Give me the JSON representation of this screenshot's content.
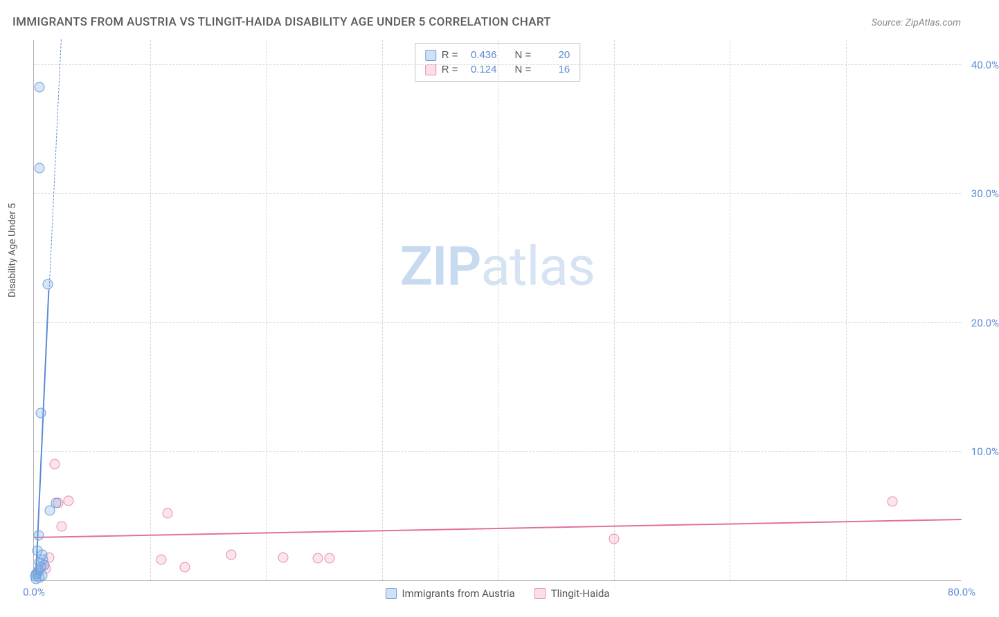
{
  "header": {
    "title": "IMMIGRANTS FROM AUSTRIA VS TLINGIT-HAIDA DISABILITY AGE UNDER 5 CORRELATION CHART",
    "source": "Source: ZipAtlas.com"
  },
  "y_axis_label": "Disability Age Under 5",
  "watermark": {
    "bold": "ZIP",
    "rest": "atlas"
  },
  "chart": {
    "type": "scatter",
    "xlim": [
      0,
      80
    ],
    "ylim": [
      0,
      42
    ],
    "x_ticks": [
      {
        "v": 0,
        "label": "0.0%"
      },
      {
        "v": 10,
        "label": ""
      },
      {
        "v": 20,
        "label": ""
      },
      {
        "v": 30,
        "label": ""
      },
      {
        "v": 40,
        "label": ""
      },
      {
        "v": 50,
        "label": ""
      },
      {
        "v": 60,
        "label": ""
      },
      {
        "v": 70,
        "label": ""
      },
      {
        "v": 80,
        "label": "80.0%"
      }
    ],
    "y_ticks": [
      {
        "v": 10,
        "label": "10.0%"
      },
      {
        "v": 20,
        "label": "20.0%"
      },
      {
        "v": 30,
        "label": "30.0%"
      },
      {
        "v": 40,
        "label": "40.0%"
      }
    ],
    "grid_color": "#d8d8d8",
    "background_color": "#ffffff",
    "axis_color": "#b0b0b0",
    "tick_fontsize": 15,
    "tick_color": "#5b8bd4",
    "marker_size": 15,
    "series": {
      "blue": {
        "label": "Immigrants from Austria",
        "fill": "rgba(120,170,230,0.3)",
        "stroke": "#6a9fd8",
        "stats": {
          "R": "0.436",
          "N": "20"
        },
        "points": [
          {
            "x": 0.5,
            "y": 38.3
          },
          {
            "x": 0.5,
            "y": 32.0
          },
          {
            "x": 1.2,
            "y": 23.0
          },
          {
            "x": 0.6,
            "y": 13.0
          },
          {
            "x": 1.9,
            "y": 6.0
          },
          {
            "x": 1.4,
            "y": 5.4
          },
          {
            "x": 0.4,
            "y": 3.5
          },
          {
            "x": 0.3,
            "y": 2.3
          },
          {
            "x": 0.7,
            "y": 2.0
          },
          {
            "x": 0.8,
            "y": 1.6
          },
          {
            "x": 0.5,
            "y": 1.4
          },
          {
            "x": 0.9,
            "y": 1.2
          },
          {
            "x": 0.6,
            "y": 1.0
          },
          {
            "x": 0.4,
            "y": 0.8
          },
          {
            "x": 0.3,
            "y": 0.6
          },
          {
            "x": 0.2,
            "y": 0.5
          },
          {
            "x": 0.7,
            "y": 0.4
          },
          {
            "x": 0.1,
            "y": 0.3
          },
          {
            "x": 0.5,
            "y": 0.2
          },
          {
            "x": 0.2,
            "y": 0.1
          }
        ],
        "trend": {
          "solid": {
            "x1": 0.2,
            "y1": 0.5,
            "x2": 1.3,
            "y2": 22.5
          },
          "dashed": {
            "x1": 1.3,
            "y1": 22.5,
            "x2": 2.5,
            "y2": 45.0
          },
          "color": "#5b8bd4",
          "width": 2.5,
          "dash_width": 1.5
        }
      },
      "pink": {
        "label": "Tlingit-Haida",
        "fill": "rgba(240,150,180,0.25)",
        "stroke": "#e88aa8",
        "stats": {
          "R": "0.124",
          "N": "16"
        },
        "points": [
          {
            "x": 1.8,
            "y": 9.0
          },
          {
            "x": 3.0,
            "y": 6.2
          },
          {
            "x": 2.1,
            "y": 6.0
          },
          {
            "x": 11.5,
            "y": 5.2
          },
          {
            "x": 2.4,
            "y": 4.2
          },
          {
            "x": 50.0,
            "y": 3.2
          },
          {
            "x": 17.0,
            "y": 2.0
          },
          {
            "x": 21.5,
            "y": 1.8
          },
          {
            "x": 24.5,
            "y": 1.7
          },
          {
            "x": 25.5,
            "y": 1.7
          },
          {
            "x": 11.0,
            "y": 1.6
          },
          {
            "x": 13.0,
            "y": 1.0
          },
          {
            "x": 74.0,
            "y": 6.1
          },
          {
            "x": 1.3,
            "y": 1.8
          },
          {
            "x": 0.9,
            "y": 1.2
          },
          {
            "x": 1.0,
            "y": 0.9
          }
        ],
        "trend": {
          "solid": {
            "x1": 0,
            "y1": 3.3,
            "x2": 80,
            "y2": 4.7
          },
          "color": "#e070a0",
          "width": 2
        }
      }
    }
  },
  "legend_top": {
    "border_color": "#c5c5c5",
    "label_R": "R =",
    "label_N": "N ="
  },
  "legend_bottom": {}
}
